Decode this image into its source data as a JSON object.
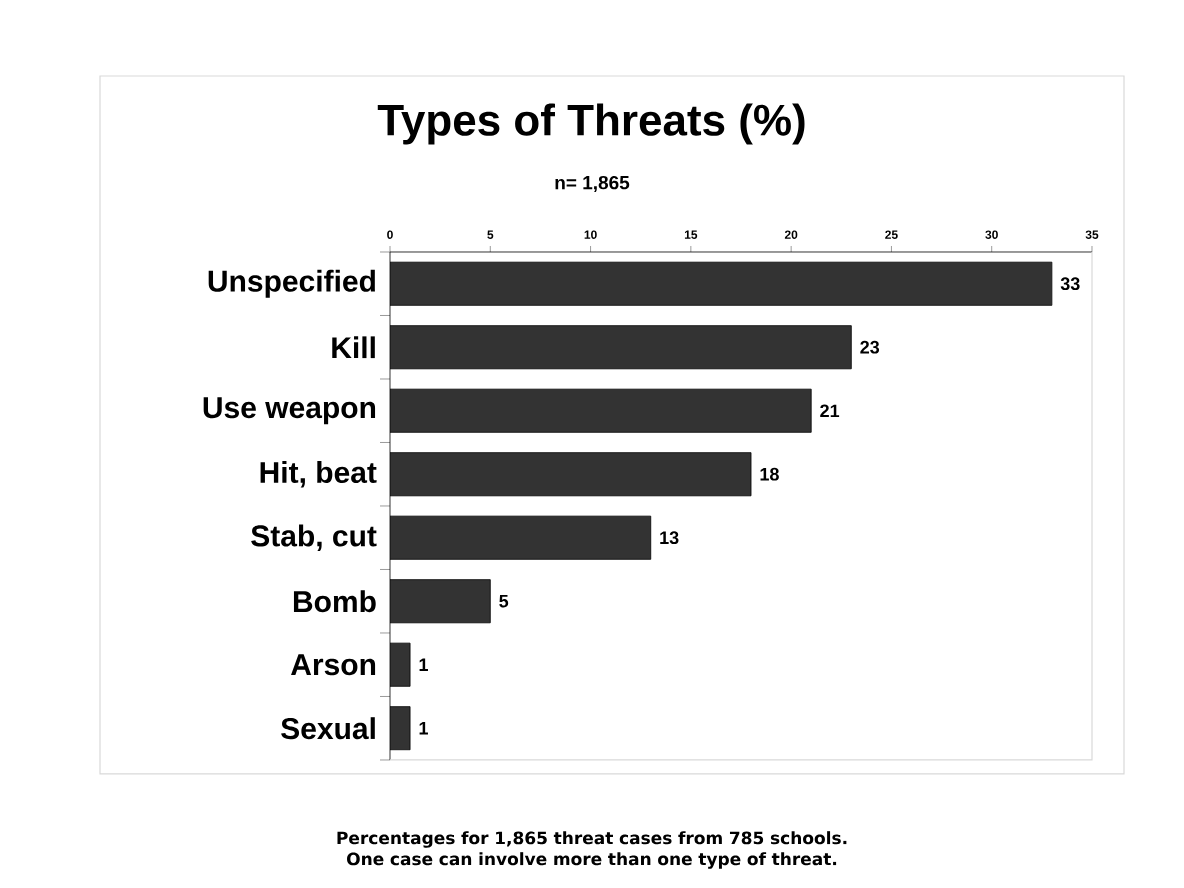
{
  "chart_data": {
    "type": "bar",
    "orientation": "horizontal",
    "title": "Types of Threats  (%)",
    "subtitle": "n= 1,865",
    "categories": [
      "Unspecified",
      "Kill",
      "Use weapon",
      "Hit, beat",
      "Stab, cut",
      "Bomb",
      "Arson",
      "Sexual"
    ],
    "values": [
      33,
      23,
      21,
      18,
      13,
      5,
      1,
      1
    ],
    "color": "#333333",
    "xlim": [
      0,
      35
    ],
    "xticks": [
      0,
      5,
      10,
      15,
      20,
      25,
      30,
      35
    ],
    "data_labels": true,
    "annotations": [
      "Percentages for 1,865 threat cases from 785 schools. One case can involve more than one type of threat."
    ]
  }
}
